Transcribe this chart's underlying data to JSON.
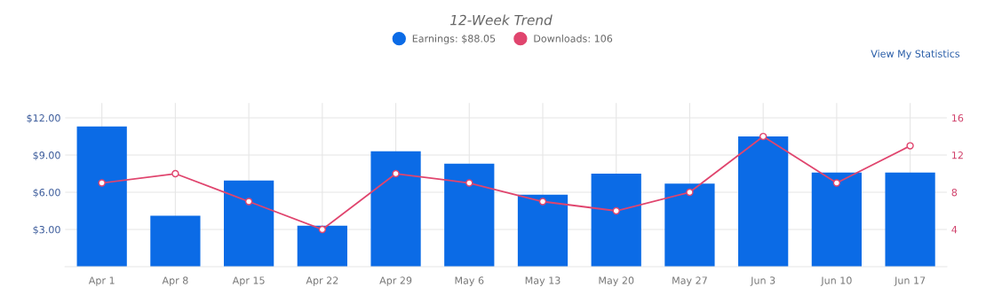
{
  "chart_data": {
    "type": "bar",
    "title": "12-Week Trend",
    "categories": [
      "Apr 1",
      "Apr 8",
      "Apr 15",
      "Apr 22",
      "Apr 29",
      "May 6",
      "May 13",
      "May 20",
      "May 27",
      "Jun 3",
      "Jun 10",
      "Jun 17"
    ],
    "series": [
      {
        "name": "Earnings: $88.05",
        "color": "#0b6be6",
        "values": [
          11.3,
          4.1,
          6.95,
          3.3,
          9.3,
          8.3,
          5.8,
          7.5,
          6.7,
          10.5,
          7.6,
          7.6
        ]
      },
      {
        "name": "Downloads: 106",
        "color": "#e0456e",
        "type": "line",
        "axis": "y2",
        "marker": "circle",
        "values": [
          9,
          10,
          7,
          4,
          10,
          9,
          7,
          6,
          8,
          14,
          9,
          13
        ]
      }
    ],
    "ylim": [
      0,
      13.2
    ],
    "yticks": [
      {
        "value": 3,
        "label": "$3.00"
      },
      {
        "value": 6,
        "label": "$6.00"
      },
      {
        "value": 9,
        "label": "$9.00"
      },
      {
        "value": 12,
        "label": "$12.00"
      }
    ],
    "y2lim": [
      0,
      17.6
    ],
    "y2ticks": [
      4,
      8,
      12,
      16
    ],
    "grid": true,
    "legend": "top",
    "annotations": [
      "View My Statistics"
    ]
  }
}
